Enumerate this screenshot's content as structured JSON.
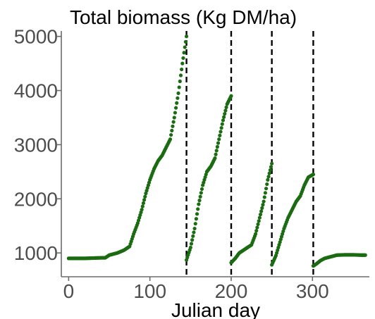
{
  "chart_data": {
    "type": "scatter",
    "title": "Total biomass (Kg DM/ha)",
    "xlabel": "Julian day",
    "ylabel": "",
    "xlim": [
      -9,
      370
    ],
    "ylim": [
      560,
      5100
    ],
    "xticks": [
      0,
      100,
      200,
      300
    ],
    "yticks": [
      1000,
      2000,
      3000,
      4000,
      5000
    ],
    "grid": false,
    "point_color": "#1a6b11",
    "vline_color": "#000000",
    "vlines_x": [
      145,
      200,
      250,
      301
    ],
    "series": [
      {
        "points": [
          [
            0,
            900
          ],
          [
            20,
            900
          ],
          [
            40,
            910
          ],
          [
            45,
            910
          ],
          [
            50,
            960
          ],
          [
            60,
            1000
          ],
          [
            68,
            1050
          ],
          [
            75,
            1120
          ],
          [
            80,
            1350
          ],
          [
            85,
            1550
          ],
          [
            90,
            1800
          ],
          [
            95,
            2100
          ],
          [
            100,
            2350
          ],
          [
            105,
            2550
          ],
          [
            110,
            2700
          ],
          [
            115,
            2800
          ],
          [
            120,
            2950
          ],
          [
            125,
            3100
          ],
          [
            130,
            3500
          ],
          [
            135,
            3950
          ],
          [
            140,
            4500
          ],
          [
            145,
            5000
          ]
        ]
      },
      {
        "points": [
          [
            145,
            870
          ],
          [
            150,
            1100
          ],
          [
            155,
            1450
          ],
          [
            160,
            1900
          ],
          [
            165,
            2250
          ],
          [
            170,
            2500
          ],
          [
            175,
            2600
          ],
          [
            180,
            2750
          ],
          [
            185,
            3100
          ],
          [
            190,
            3450
          ],
          [
            195,
            3750
          ],
          [
            200,
            3900
          ]
        ]
      },
      {
        "points": [
          [
            200,
            820
          ],
          [
            205,
            900
          ],
          [
            210,
            1000
          ],
          [
            215,
            1050
          ],
          [
            220,
            1100
          ],
          [
            225,
            1150
          ],
          [
            230,
            1350
          ],
          [
            235,
            1650
          ],
          [
            240,
            1950
          ],
          [
            245,
            2350
          ],
          [
            250,
            2650
          ]
        ]
      },
      {
        "points": [
          [
            250,
            780
          ],
          [
            255,
            950
          ],
          [
            260,
            1200
          ],
          [
            265,
            1450
          ],
          [
            270,
            1650
          ],
          [
            275,
            1800
          ],
          [
            280,
            1950
          ],
          [
            285,
            2050
          ],
          [
            290,
            2250
          ],
          [
            295,
            2400
          ],
          [
            301,
            2450
          ]
        ]
      },
      {
        "points": [
          [
            301,
            760
          ],
          [
            305,
            800
          ],
          [
            310,
            860
          ],
          [
            315,
            900
          ],
          [
            320,
            920
          ],
          [
            325,
            940
          ],
          [
            330,
            960
          ],
          [
            340,
            965
          ],
          [
            350,
            965
          ],
          [
            360,
            960
          ],
          [
            365,
            960
          ]
        ]
      }
    ]
  }
}
